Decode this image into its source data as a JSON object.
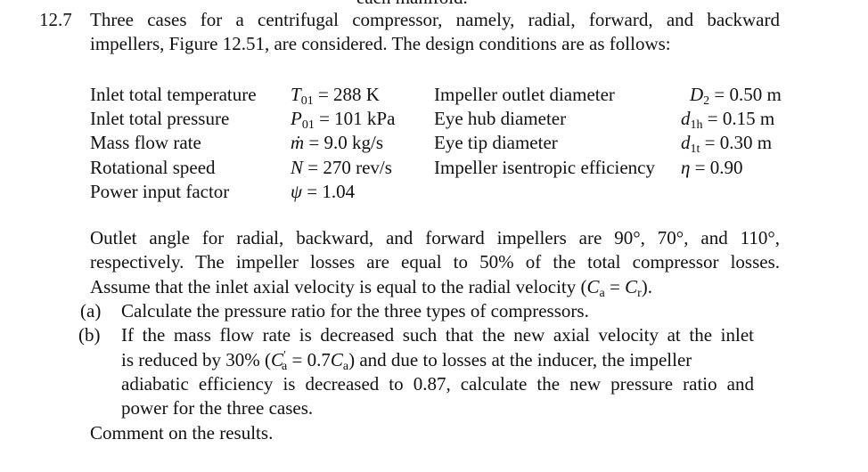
{
  "cutoff_line": "each manifold.",
  "problem": {
    "number": "12.7",
    "intro_lines": [
      "Three cases for a centrifugal compressor, namely, radial, forward, and backward",
      "impellers, Figure 12.51, are considered. The design conditions are as follows:"
    ],
    "conditions_left": [
      {
        "label": "Inlet total temperature",
        "sym": "T",
        "sub": "01",
        "value": " = 288 K"
      },
      {
        "label": "Inlet total pressure",
        "sym": "P",
        "sub": "01",
        "value": " = 101 kPa"
      },
      {
        "label": "Mass flow rate",
        "sym": "ṁ",
        "sub": "",
        "value": " = 9.0 kg/s"
      },
      {
        "label": "Rotational speed",
        "sym": "N",
        "sub": "",
        "value": " = 270 rev/s"
      },
      {
        "label": "Power input factor",
        "sym": "ψ",
        "sub": "",
        "value": " = 1.04"
      }
    ],
    "conditions_right": [
      {
        "label": "Impeller outlet diameter",
        "sym": "D",
        "sub": "2",
        "value": " = 0.50 m"
      },
      {
        "label": "Eye hub diameter",
        "sym": "d",
        "sub": "1h",
        "value": " = 0.15 m"
      },
      {
        "label": "Eye tip diameter",
        "sym": "d",
        "sub": "1t",
        "value": " = 0.30 m"
      },
      {
        "label": "Impeller isentropic efficiency",
        "sym": "η",
        "sub": "",
        "value": " = 0.90"
      }
    ],
    "body_lines": [
      "Outlet angle for radial, backward, and forward impellers are 90°, 70°, and 110°,",
      "respectively. The impeller losses are equal to 50% of the total compressor losses."
    ],
    "assume": {
      "text": "Assume that the inlet axial velocity is equal to the radial velocity (",
      "a": "C",
      "a_sub": "a",
      "eq": " = ",
      "b": "C",
      "b_sub": "r",
      "end": ")."
    },
    "part_a": {
      "label": "(a)",
      "text": "Calculate the pressure ratio for the three types of compressors."
    },
    "part_b": {
      "label": "(b)",
      "line1": "If the mass flow rate is decreased such that the new axial velocity at the inlet",
      "line2_pre": "is reduced by 30% (",
      "line2_sym": "C",
      "line2_sup": "′",
      "line2_sub": "a",
      "line2_mid": " = 0.7",
      "line2_sym2": "C",
      "line2_sub2": "a",
      "line2_post": ") and due to losses at the inducer, the impeller",
      "line3": "adiabatic efficiency is decreased to 0.87, calculate the new pressure ratio and",
      "line4": "power for the three cases."
    },
    "comment": "Comment on the results."
  }
}
